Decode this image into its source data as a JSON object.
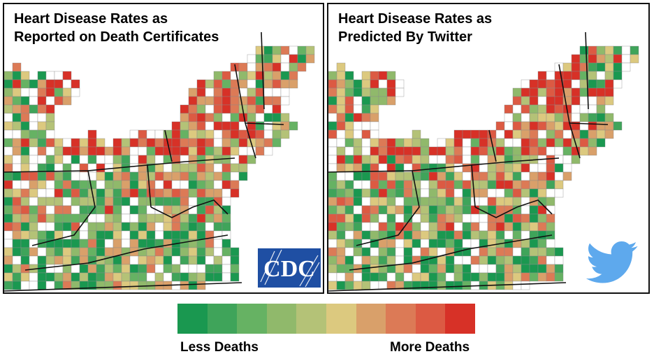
{
  "left_panel": {
    "title_line1": "Heart Disease Rates as",
    "title_line2": "Reported on Death Certificates",
    "logo_text": "CDC",
    "logo_icon": "cdc-logo-icon"
  },
  "right_panel": {
    "title_line1": "Heart Disease Rates as",
    "title_line2": "Predicted By Twitter",
    "logo_icon": "twitter-bird-icon"
  },
  "legend": {
    "less_label": "Less Deaths",
    "more_label": "More Deaths",
    "scale_steps": 10,
    "colors": [
      "#1a9850",
      "#3fa45a",
      "#66b263",
      "#90b96b",
      "#b4c277",
      "#dcc97f",
      "#d9a06a",
      "#dc7a56",
      "#dc5a43",
      "#d73127"
    ]
  },
  "colors": {
    "cdc_blue": "#1f4fa3",
    "twitter_blue": "#5ea9ed",
    "water_blue": "#ffffff",
    "no_data": "#ffffff",
    "state_border": "#111111"
  }
}
